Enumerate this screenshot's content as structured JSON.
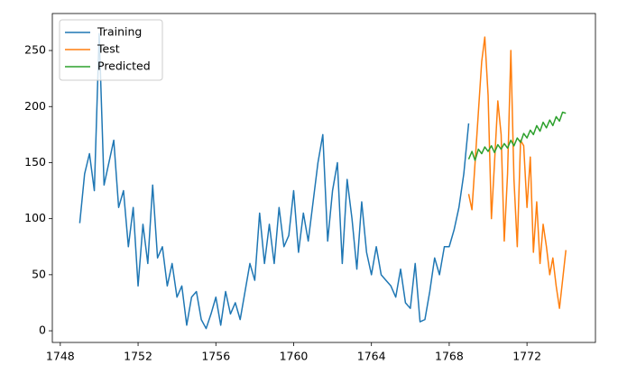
{
  "chart_data": {
    "type": "line",
    "xlim": [
      1747.59,
      1775.52
    ],
    "ylim": [
      -10.4,
      283
    ],
    "xticks": [
      1748,
      1752,
      1756,
      1760,
      1764,
      1768,
      1772
    ],
    "yticks": [
      0,
      50,
      100,
      150,
      200,
      250
    ],
    "legend": "upper left",
    "grid": false,
    "series": [
      {
        "name": "Training",
        "color": "#1f77b4",
        "x": [
          1749.0,
          1749.25,
          1749.5,
          1749.75,
          1750.0,
          1750.25,
          1750.5,
          1750.75,
          1751.0,
          1751.25,
          1751.5,
          1751.75,
          1752.0,
          1752.25,
          1752.5,
          1752.75,
          1753.0,
          1753.25,
          1753.5,
          1753.75,
          1754.0,
          1754.25,
          1754.5,
          1754.75,
          1755.0,
          1755.25,
          1755.5,
          1755.75,
          1756.0,
          1756.25,
          1756.5,
          1756.75,
          1757.0,
          1757.25,
          1757.5,
          1757.75,
          1758.0,
          1758.25,
          1758.5,
          1758.75,
          1759.0,
          1759.25,
          1759.5,
          1759.75,
          1760.0,
          1760.25,
          1760.5,
          1760.75,
          1761.0,
          1761.25,
          1761.5,
          1761.75,
          1762.0,
          1762.25,
          1762.5,
          1762.75,
          1763.0,
          1763.25,
          1763.5,
          1763.75,
          1764.0,
          1764.25,
          1764.5,
          1764.75,
          1765.0,
          1765.25,
          1765.5,
          1765.75,
          1766.0,
          1766.25,
          1766.5,
          1766.75,
          1767.0,
          1767.25,
          1767.5,
          1767.75,
          1768.0,
          1768.25,
          1768.5,
          1768.75,
          1769.0
        ],
        "values": [
          96,
          140,
          158,
          125,
          265,
          130,
          150,
          170,
          110,
          125,
          75,
          110,
          40,
          95,
          60,
          130,
          65,
          75,
          40,
          60,
          30,
          40,
          5,
          30,
          35,
          10,
          2,
          15,
          30,
          5,
          35,
          15,
          25,
          10,
          35,
          60,
          45,
          105,
          60,
          95,
          60,
          110,
          75,
          85,
          125,
          70,
          105,
          80,
          115,
          150,
          175,
          80,
          125,
          150,
          60,
          135,
          100,
          55,
          115,
          70,
          50,
          75,
          50,
          45,
          40,
          30,
          55,
          25,
          20,
          60,
          8,
          10,
          35,
          65,
          50,
          75,
          75,
          90,
          110,
          140,
          185
        ]
      },
      {
        "name": "Test",
        "color": "#ff7f0e",
        "x": [
          1769.0,
          1769.17,
          1769.33,
          1769.5,
          1769.67,
          1769.83,
          1770.0,
          1770.17,
          1770.33,
          1770.5,
          1770.67,
          1770.83,
          1771.0,
          1771.17,
          1771.33,
          1771.5,
          1771.67,
          1771.83,
          1772.0,
          1772.17,
          1772.33,
          1772.5,
          1772.67,
          1772.83,
          1773.0,
          1773.17,
          1773.33,
          1773.5,
          1773.67,
          1773.83,
          1774.0
        ],
        "values": [
          122,
          108,
          150,
          195,
          240,
          262,
          210,
          100,
          150,
          205,
          175,
          80,
          140,
          250,
          135,
          75,
          170,
          165,
          110,
          155,
          70,
          115,
          60,
          95,
          75,
          50,
          65,
          40,
          20,
          45,
          72
        ]
      },
      {
        "name": "Predicted",
        "color": "#2ca02c",
        "x": [
          1769.0,
          1769.17,
          1769.33,
          1769.5,
          1769.67,
          1769.83,
          1770.0,
          1770.17,
          1770.33,
          1770.5,
          1770.67,
          1770.83,
          1771.0,
          1771.17,
          1771.33,
          1771.5,
          1771.67,
          1771.83,
          1772.0,
          1772.17,
          1772.33,
          1772.5,
          1772.67,
          1772.83,
          1773.0,
          1773.17,
          1773.33,
          1773.5,
          1773.67,
          1773.83,
          1774.0
        ],
        "values": [
          153,
          160,
          152,
          162,
          158,
          164,
          160,
          165,
          159,
          166,
          162,
          167,
          163,
          170,
          165,
          172,
          168,
          176,
          172,
          179,
          175,
          183,
          178,
          186,
          181,
          188,
          183,
          191,
          187,
          195,
          194
        ]
      }
    ]
  }
}
